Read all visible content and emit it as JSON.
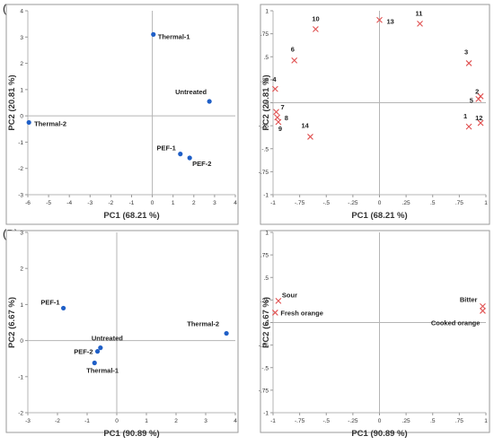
{
  "panel_labels": [
    "(A)",
    "(B)"
  ],
  "chart_data": [
    {
      "type": "scatter",
      "title": "",
      "xlabel": "PC1 (68.21 %)",
      "ylabel": "PC2 (20.81 %)",
      "xlim": [
        -6,
        4
      ],
      "ylim": [
        -3,
        4
      ],
      "xticks": [
        -6,
        -5,
        -4,
        -3,
        -2,
        -1,
        0,
        1,
        2,
        3,
        4
      ],
      "yticks": [
        -3,
        -2,
        -1,
        0,
        1,
        2,
        3,
        4
      ],
      "grid": false,
      "marker": "dot",
      "color": "#1f5fc7",
      "points": [
        {
          "label": "Thermal-1",
          "x": 0.05,
          "y": 3.1
        },
        {
          "label": "Untreated",
          "x": 2.75,
          "y": 0.55
        },
        {
          "label": "Thermal-2",
          "x": -5.95,
          "y": -0.25
        },
        {
          "label": "PEF-1",
          "x": 1.35,
          "y": -1.45
        },
        {
          "label": "PEF-2",
          "x": 1.8,
          "y": -1.6
        }
      ]
    },
    {
      "type": "scatter",
      "title": "",
      "xlabel": "PC1 (68.21 %)",
      "ylabel": "PC2 (20.81 %)",
      "xlim": [
        -1,
        1
      ],
      "ylim": [
        -1,
        1
      ],
      "xticks": [
        -1,
        -0.75,
        -0.5,
        -0.25,
        0,
        0.25,
        0.5,
        0.75,
        1
      ],
      "yticks": [
        -1,
        -0.75,
        -0.5,
        -0.25,
        0,
        0.25,
        0.5,
        0.75,
        1
      ],
      "grid": false,
      "marker": "x",
      "color": "#e05050",
      "points": [
        {
          "label": "10",
          "x": -0.6,
          "y": 0.8
        },
        {
          "label": "13",
          "x": 0.0,
          "y": 0.9
        },
        {
          "label": "11",
          "x": 0.38,
          "y": 0.86
        },
        {
          "label": "6",
          "x": -0.8,
          "y": 0.46
        },
        {
          "label": "3",
          "x": 0.84,
          "y": 0.43
        },
        {
          "label": "4",
          "x": -0.98,
          "y": 0.15
        },
        {
          "label": "2",
          "x": 0.95,
          "y": 0.07
        },
        {
          "label": "5",
          "x": 0.93,
          "y": 0.04
        },
        {
          "label": "7",
          "x": -0.97,
          "y": -0.1
        },
        {
          "label": "8",
          "x": -0.96,
          "y": -0.16
        },
        {
          "label": "9",
          "x": -0.95,
          "y": -0.21
        },
        {
          "label": "14",
          "x": -0.65,
          "y": -0.37
        },
        {
          "label": "1",
          "x": 0.84,
          "y": -0.26
        },
        {
          "label": "12",
          "x": 0.95,
          "y": -0.22
        }
      ]
    },
    {
      "type": "scatter",
      "title": "",
      "xlabel": "PC1 (90.89 %)",
      "ylabel": "PC2 (6.67 %)",
      "xlim": [
        -3,
        4
      ],
      "ylim": [
        -2,
        3
      ],
      "xticks": [
        -3,
        -2,
        -1,
        0,
        1,
        2,
        3,
        4
      ],
      "yticks": [
        -2,
        -1,
        0,
        1,
        2,
        3
      ],
      "grid": false,
      "marker": "dot",
      "color": "#1f5fc7",
      "points": [
        {
          "label": "PEF-1",
          "x": -1.8,
          "y": 0.9
        },
        {
          "label": "Thermal-2",
          "x": 3.7,
          "y": 0.2
        },
        {
          "label": "Untreated",
          "x": -0.55,
          "y": -0.2
        },
        {
          "label": "PEF-2",
          "x": -0.65,
          "y": -0.3
        },
        {
          "label": "Thermal-1",
          "x": -0.75,
          "y": -0.62
        }
      ]
    },
    {
      "type": "scatter",
      "title": "",
      "xlabel": "PC1 (90.89 %)",
      "ylabel": "PC2 (6.67 %)",
      "xlim": [
        -1,
        1
      ],
      "ylim": [
        -1,
        1
      ],
      "xticks": [
        -1,
        -0.75,
        -0.5,
        -0.25,
        0,
        0.25,
        0.5,
        0.75,
        1
      ],
      "yticks": [
        -1,
        -0.75,
        -0.5,
        -0.25,
        0,
        0.25,
        0.5,
        0.75,
        1
      ],
      "grid": false,
      "marker": "x",
      "color": "#e05050",
      "points": [
        {
          "label": "Sour",
          "x": -0.95,
          "y": 0.24
        },
        {
          "label": "Fresh orange",
          "x": -0.98,
          "y": 0.11
        },
        {
          "label": "Bitter",
          "x": 0.97,
          "y": 0.18
        },
        {
          "label": "Cooked orange",
          "x": 0.97,
          "y": 0.13
        }
      ]
    }
  ]
}
